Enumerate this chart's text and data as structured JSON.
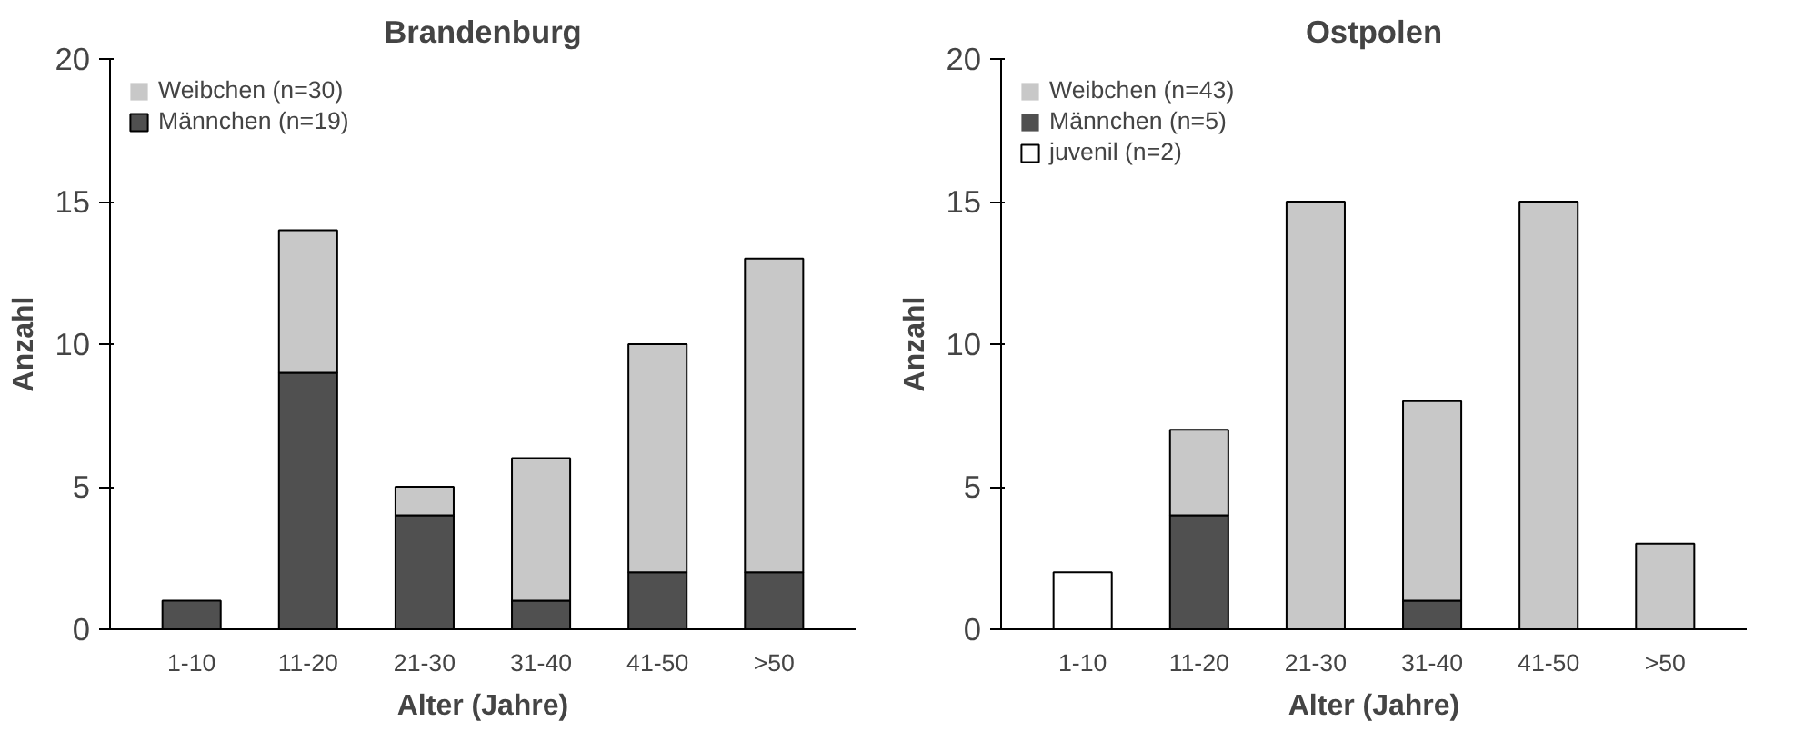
{
  "chart_data": [
    {
      "type": "bar",
      "title": "Brandenburg",
      "xlabel": "Alter (Jahre)",
      "ylabel": "Anzahl",
      "categories": [
        "1-10",
        "11-20",
        "21-30",
        "31-40",
        "41-50",
        ">50"
      ],
      "stacked": true,
      "ylim": [
        0,
        20
      ],
      "yticks": [
        0,
        5,
        10,
        15,
        20
      ],
      "grid": false,
      "legend": "top left",
      "series": [
        {
          "name": "Männchen (n=19)",
          "color": "#505050",
          "values": [
            1,
            9,
            4,
            1,
            2,
            2
          ]
        },
        {
          "name": "Weibchen (n=30)",
          "color": "#c8c8c8",
          "values": [
            0,
            5,
            1,
            5,
            8,
            11
          ]
        }
      ]
    },
    {
      "type": "bar",
      "title": "Ostpolen",
      "xlabel": "Alter (Jahre)",
      "ylabel": "Anzahl",
      "categories": [
        "1-10",
        "11-20",
        "21-30",
        "31-40",
        "41-50",
        ">50"
      ],
      "stacked": true,
      "ylim": [
        0,
        20
      ],
      "yticks": [
        0,
        5,
        10,
        15,
        20
      ],
      "grid": false,
      "legend": "top left",
      "series": [
        {
          "name": "juvenil (n=2)",
          "color": "#ffffff",
          "values": [
            2,
            0,
            0,
            0,
            0,
            0
          ]
        },
        {
          "name": "Männchen (n=5)",
          "color": "#505050",
          "values": [
            0,
            4,
            0,
            1,
            0,
            0
          ]
        },
        {
          "name": "Weibchen (n=43)",
          "color": "#c8c8c8",
          "values": [
            0,
            3,
            15,
            7,
            15,
            3
          ]
        }
      ]
    }
  ]
}
